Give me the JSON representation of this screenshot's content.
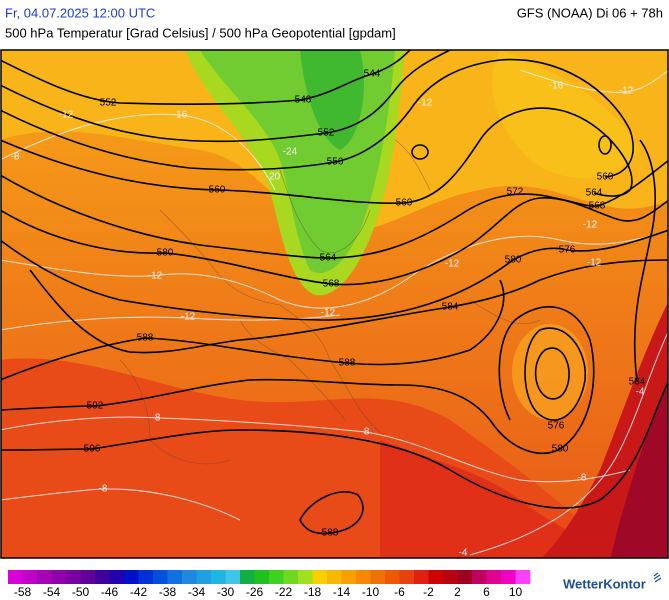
{
  "header": {
    "datetime": "Fr, 04.07.2025 12:00 UTC",
    "model": "GFS (NOAA) Di 06 + 78h",
    "subtitle": "500 hPa Temperatur [Grad Celsius] / 500 hPa Geopotential [gpdam]"
  },
  "map": {
    "geopotential_labels": [
      552,
      548,
      544,
      552,
      556,
      560,
      560,
      564,
      568,
      572,
      576,
      580,
      580,
      584,
      588,
      588,
      592,
      596,
      576,
      580,
      584,
      588,
      560,
      564,
      568
    ],
    "temperature_labels": [
      -8,
      -12,
      -16,
      -20,
      -24,
      -12,
      -12,
      -12,
      -12,
      -16,
      -12,
      -12,
      -12,
      -8,
      -8,
      -8,
      -4,
      -4,
      -8,
      -12
    ]
  },
  "colorbar": {
    "colors": [
      "#d800d8",
      "#c000c8",
      "#a800b8",
      "#9000a8",
      "#7800a0",
      "#600098",
      "#4000a0",
      "#2000b0",
      "#0010c8",
      "#0030d8",
      "#0050e0",
      "#1070e0",
      "#2088e0",
      "#20a0e0",
      "#20b4e0",
      "#40c4e8",
      "#10b040",
      "#20c020",
      "#40d020",
      "#70d820",
      "#a0e020",
      "#f8d000",
      "#f8b800",
      "#f8a000",
      "#f88800",
      "#f07000",
      "#f05800",
      "#e84010",
      "#e02010",
      "#d00000",
      "#b80010",
      "#a00020",
      "#c00060",
      "#e00090",
      "#f000c0",
      "#ff40ff"
    ],
    "labels": [
      -58,
      -54,
      -50,
      -46,
      -42,
      -38,
      -34,
      -30,
      -26,
      -22,
      -18,
      -14,
      -10,
      -6,
      -2,
      2,
      6,
      10
    ]
  },
  "brand": "WetterKontor"
}
